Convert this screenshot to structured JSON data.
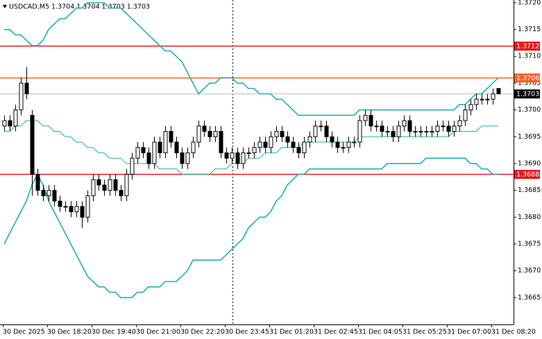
{
  "chart_data": {
    "type": "candlestick",
    "title": "USDCAD,M5  1.3704 1.3704 1.3703 1.3703",
    "categories": [
      "30 Dec 2025",
      null,
      null,
      null,
      null,
      null,
      null,
      null,
      "30 Dec 18:20",
      null,
      null,
      null,
      null,
      null,
      null,
      null,
      "30 Dec 19:40",
      null,
      null,
      null,
      null,
      null,
      null,
      null,
      "30 Dec 21:00",
      null,
      null,
      null,
      null,
      null,
      null,
      null,
      "30 Dec 22:20",
      null,
      null,
      null,
      null,
      null,
      null,
      null,
      "30 Dec 23:45",
      null,
      null,
      null,
      null,
      null,
      null,
      null,
      "31 Dec 01:20",
      null,
      null,
      null,
      null,
      null,
      null,
      null,
      "31 Dec 02:45",
      null,
      null,
      null,
      null,
      null,
      null,
      null,
      "31 Dec 04:05",
      null,
      null,
      null,
      null,
      null,
      null,
      null,
      "31 Dec 05:25",
      null,
      null,
      null,
      null,
      null,
      null,
      null,
      "31 Dec 07:00",
      null,
      null,
      null,
      null,
      null,
      null,
      null,
      "31 Dec 08:20",
      null
    ],
    "open": [
      1.3697,
      1.3698,
      1.3697,
      1.37,
      1.3705,
      1.3699,
      1.3688,
      1.3685,
      1.3684,
      1.3685,
      1.3683,
      1.3682,
      1.3682,
      1.3681,
      1.3682,
      1.368,
      1.3684,
      1.3687,
      1.3686,
      1.3685,
      1.3687,
      1.3685,
      1.3684,
      1.3688,
      1.3691,
      1.3693,
      1.3692,
      1.369,
      1.3694,
      1.3692,
      1.3696,
      1.3694,
      1.3692,
      1.369,
      1.3692,
      1.3694,
      1.3697,
      1.3696,
      1.3695,
      1.3696,
      1.3692,
      1.3691,
      1.3692,
      1.369,
      1.3692,
      1.3692,
      1.3693,
      1.3694,
      1.3693,
      1.3695,
      1.3696,
      1.3695,
      1.3694,
      1.3693,
      1.3692,
      1.3694,
      1.3695,
      1.3697,
      1.3697,
      1.3695,
      1.3694,
      1.3693,
      1.3693,
      1.3694,
      1.3694,
      1.3698,
      1.3699,
      1.3697,
      1.3697,
      1.3696,
      1.3696,
      1.3695,
      1.3697,
      1.3698,
      1.3696,
      1.3696,
      1.3696,
      1.3696,
      1.3696,
      1.3697,
      1.3697,
      1.3696,
      1.3697,
      1.3698,
      1.37,
      1.3701,
      1.3702,
      1.3702,
      1.3702,
      1.3704
    ],
    "high": [
      1.3699,
      1.3699,
      1.3701,
      1.3706,
      1.3708,
      1.37,
      1.3689,
      1.3686,
      1.3686,
      1.3686,
      1.3684,
      1.3683,
      1.3683,
      1.3683,
      1.3683,
      1.3685,
      1.3688,
      1.3688,
      1.3687,
      1.3688,
      1.3688,
      1.3686,
      1.3689,
      1.3692,
      1.3694,
      1.3694,
      1.3693,
      1.3695,
      1.3695,
      1.3697,
      1.3697,
      1.3695,
      1.3693,
      1.3693,
      1.3695,
      1.3698,
      1.3698,
      1.3697,
      1.3697,
      1.3697,
      1.3693,
      1.3693,
      1.3693,
      1.3693,
      1.3693,
      1.3694,
      1.3695,
      1.3695,
      1.3696,
      1.3697,
      1.3697,
      1.3696,
      1.3695,
      1.3694,
      1.3695,
      1.3696,
      1.3698,
      1.3698,
      1.3698,
      1.3696,
      1.3695,
      1.3694,
      1.3695,
      1.3695,
      1.3699,
      1.37,
      1.37,
      1.3698,
      1.3698,
      1.3697,
      1.3697,
      1.3698,
      1.3699,
      1.3699,
      1.3697,
      1.3697,
      1.3697,
      1.3697,
      1.3698,
      1.3698,
      1.3698,
      1.3698,
      1.3699,
      1.3701,
      1.3702,
      1.3703,
      1.3703,
      1.3703,
      1.3704,
      1.3704
    ],
    "low": [
      1.3696,
      1.3696,
      1.3696,
      1.3699,
      1.3702,
      1.3684,
      1.3684,
      1.3683,
      1.3683,
      1.3682,
      1.3681,
      1.3681,
      1.368,
      1.368,
      1.3678,
      1.3679,
      1.3683,
      1.3685,
      1.3684,
      1.3684,
      1.3684,
      1.3683,
      1.3683,
      1.3687,
      1.369,
      1.3691,
      1.3689,
      1.3689,
      1.3691,
      1.3691,
      1.3693,
      1.3691,
      1.3689,
      1.3689,
      1.3691,
      1.3693,
      1.3695,
      1.3694,
      1.3694,
      1.3691,
      1.369,
      1.369,
      1.3689,
      1.3689,
      1.3691,
      1.3691,
      1.3692,
      1.3692,
      1.3692,
      1.3694,
      1.3694,
      1.3693,
      1.3692,
      1.3691,
      1.3691,
      1.3693,
      1.3694,
      1.3696,
      1.3694,
      1.3693,
      1.3692,
      1.3692,
      1.3692,
      1.3693,
      1.3693,
      1.3697,
      1.3696,
      1.3696,
      1.3695,
      1.3695,
      1.3694,
      1.3694,
      1.3696,
      1.3695,
      1.3695,
      1.3695,
      1.3695,
      1.3695,
      1.3695,
      1.3696,
      1.3695,
      1.3695,
      1.3696,
      1.3697,
      1.3699,
      1.37,
      1.3701,
      1.3701,
      1.3701,
      1.3703
    ],
    "close": [
      1.3698,
      1.3697,
      1.37,
      1.3705,
      1.3703,
      1.3688,
      1.3685,
      1.3684,
      1.3685,
      1.3683,
      1.3682,
      1.3682,
      1.3681,
      1.3682,
      1.368,
      1.3684,
      1.3687,
      1.3686,
      1.3685,
      1.3687,
      1.3685,
      1.3684,
      1.3688,
      1.3691,
      1.3693,
      1.3692,
      1.369,
      1.3694,
      1.3692,
      1.3696,
      1.3694,
      1.3692,
      1.369,
      1.3692,
      1.3694,
      1.3697,
      1.3696,
      1.3695,
      1.3696,
      1.3692,
      1.3691,
      1.3692,
      1.369,
      1.3692,
      1.3692,
      1.3693,
      1.3694,
      1.3693,
      1.3695,
      1.3696,
      1.3695,
      1.3694,
      1.3693,
      1.3692,
      1.3694,
      1.3695,
      1.3697,
      1.3697,
      1.3695,
      1.3694,
      1.3693,
      1.3693,
      1.3694,
      1.3694,
      1.3698,
      1.3699,
      1.3697,
      1.3697,
      1.3696,
      1.3696,
      1.3695,
      1.3697,
      1.3698,
      1.3696,
      1.3696,
      1.3696,
      1.3696,
      1.3696,
      1.3697,
      1.3697,
      1.3696,
      1.3697,
      1.3698,
      1.37,
      1.3701,
      1.3702,
      1.3702,
      1.3702,
      1.3703,
      1.3703
    ],
    "color_up": "#ffffff",
    "color_down": "#000000",
    "bands": [
      {
        "color": "#20b2aa",
        "values": [
          1.3715,
          1.3715,
          1.3714,
          1.3714,
          1.3713,
          1.3712,
          1.3712,
          1.3713,
          1.3715,
          1.3716,
          1.3717,
          1.3717,
          1.3718,
          1.3719,
          1.3719,
          1.372,
          1.372,
          1.372,
          1.372,
          1.3719,
          1.3719,
          1.3719,
          1.3718,
          1.3717,
          1.3716,
          1.3715,
          1.3714,
          1.3713,
          1.3712,
          1.3711,
          1.3711,
          1.371,
          1.3709,
          1.3707,
          1.3705,
          1.3703,
          1.3704,
          1.3705,
          1.3705,
          1.3706,
          1.3706,
          1.3706,
          1.3705,
          1.3705,
          1.3704,
          1.3704,
          1.3703,
          1.3703,
          1.3703,
          1.3702,
          1.3702,
          1.3701,
          1.37,
          1.3699,
          1.3699,
          1.3699,
          1.3699,
          1.3699,
          1.3699,
          1.3699,
          1.3699,
          1.3699,
          1.3699,
          1.3699,
          1.37,
          1.37,
          1.37,
          1.37,
          1.37,
          1.37,
          1.37,
          1.37,
          1.37,
          1.37,
          1.37,
          1.37,
          1.37,
          1.37,
          1.37,
          1.37,
          1.37,
          1.37,
          1.3701,
          1.3701,
          1.3702,
          1.3703,
          1.3703,
          1.3704,
          1.3705,
          1.3706
        ]
      },
      {
        "color": "#20b2aa",
        "values": [
          1.3696,
          1.3696,
          1.3697,
          1.3697,
          1.3698,
          1.3698,
          1.3698,
          1.3697,
          1.3697,
          1.3696,
          1.3696,
          1.3695,
          1.3695,
          1.3694,
          1.3694,
          1.3693,
          1.3693,
          1.3692,
          1.3692,
          1.3691,
          1.3691,
          1.3691,
          1.369,
          1.369,
          1.369,
          1.369,
          1.369,
          1.369,
          1.3689,
          1.3689,
          1.3689,
          1.3689,
          1.3688,
          1.3688,
          1.3688,
          1.3688,
          1.3688,
          1.3688,
          1.3689,
          1.3689,
          1.3689,
          1.369,
          1.369,
          1.369,
          1.3691,
          1.3691,
          1.3691,
          1.3692,
          1.3692,
          1.3692,
          1.3693,
          1.3693,
          1.3693,
          1.3693,
          1.3694,
          1.3694,
          1.3694,
          1.3694,
          1.3694,
          1.3694,
          1.3694,
          1.3694,
          1.3694,
          1.3694,
          1.3695,
          1.3695,
          1.3695,
          1.3695,
          1.3695,
          1.3695,
          1.3695,
          1.3695,
          1.3695,
          1.3695,
          1.3695,
          1.3695,
          1.3695,
          1.3695,
          1.3695,
          1.3695,
          1.3695,
          1.3696,
          1.3696,
          1.3696,
          1.3696,
          1.3696,
          1.3697,
          1.3697,
          1.3697,
          1.3697
        ]
      },
      {
        "color": "#20b2aa",
        "values": [
          1.3675,
          1.3677,
          1.3679,
          1.3681,
          1.3683,
          1.3686,
          1.3688,
          1.3686,
          1.3683,
          1.3681,
          1.3679,
          1.3677,
          1.3675,
          1.3673,
          1.3671,
          1.3669,
          1.3668,
          1.3667,
          1.3667,
          1.3666,
          1.3666,
          1.3665,
          1.3665,
          1.3665,
          1.3666,
          1.3666,
          1.3667,
          1.3667,
          1.3667,
          1.3668,
          1.3668,
          1.3668,
          1.3669,
          1.367,
          1.3672,
          1.3672,
          1.3672,
          1.3672,
          1.3672,
          1.3672,
          1.3673,
          1.3674,
          1.3675,
          1.3676,
          1.3678,
          1.3679,
          1.368,
          1.368,
          1.3681,
          1.3683,
          1.3684,
          1.3686,
          1.3687,
          1.3688,
          1.3688,
          1.3689,
          1.3689,
          1.3689,
          1.3689,
          1.3689,
          1.3689,
          1.3689,
          1.3689,
          1.3689,
          1.3689,
          1.3689,
          1.3689,
          1.3689,
          1.3689,
          1.369,
          1.369,
          1.369,
          1.369,
          1.369,
          1.369,
          1.369,
          1.3691,
          1.3691,
          1.3691,
          1.3691,
          1.3691,
          1.3691,
          1.3691,
          1.3691,
          1.369,
          1.369,
          1.3689,
          1.3689,
          1.3688,
          1.3688
        ]
      }
    ],
    "levels": [
      {
        "value": 1.3712,
        "color": "#e41a1a"
      },
      {
        "value": 1.3706,
        "color": "#f0642a"
      },
      {
        "value": 1.3703,
        "color": "#000000"
      },
      {
        "value": 1.3688,
        "color": "#e41a1a"
      }
    ],
    "ylim": [
      1.366,
      1.37205
    ],
    "yticks": [
      {
        "value": 1.372,
        "label": "1.3720"
      },
      1.3715,
      {
        "value": 1.371,
        "label": "1.3710"
      },
      1.3705,
      {
        "value": 1.37,
        "label": "1.3700"
      },
      1.3695,
      {
        "value": 1.369,
        "label": "1.3690"
      },
      1.3685,
      {
        "value": 1.368,
        "label": "1.3680"
      },
      1.3675,
      {
        "value": 1.367,
        "label": "1.3670"
      },
      1.3665
    ],
    "grid": false
  }
}
